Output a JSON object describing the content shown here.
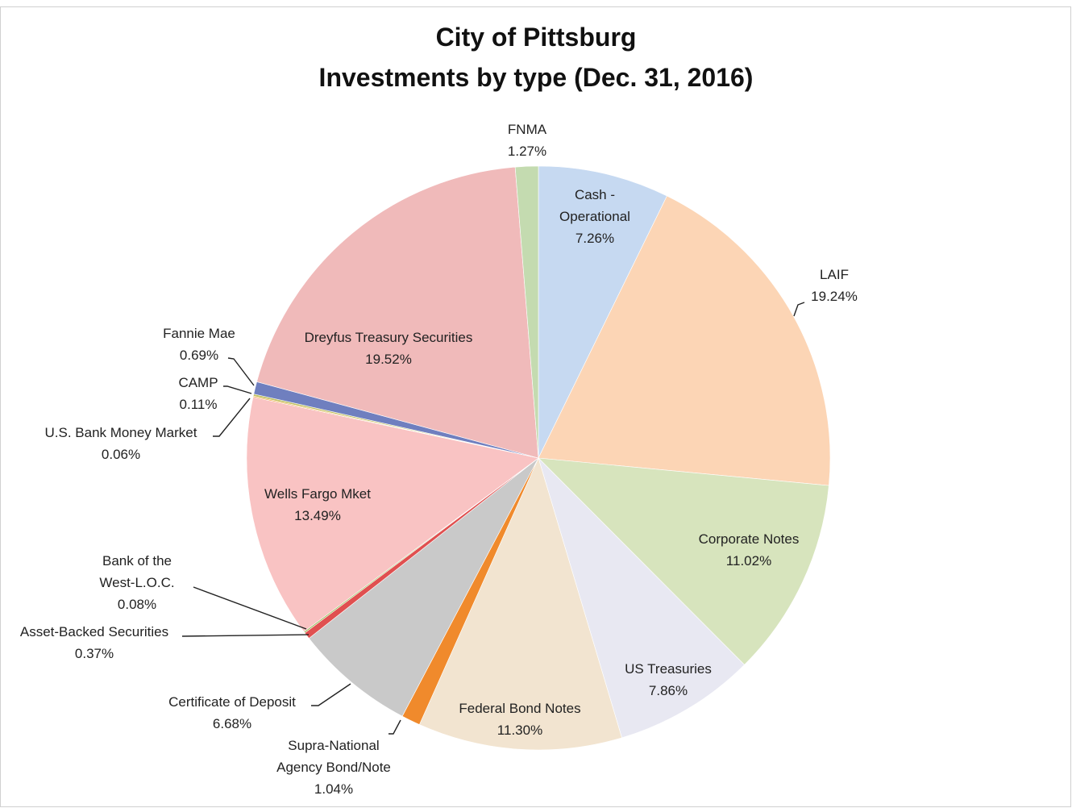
{
  "chart_data": {
    "type": "pie",
    "title": "City of Pittsburg",
    "subtitle": "Investments by type (Dec. 31, 2016)",
    "categories": [
      "Cash - Operational",
      "LAIF",
      "Corporate Notes",
      "US Treasuries",
      "Federal Bond Notes",
      "Supra-National Agency Bond/Note",
      "Certificate of Deposit",
      "Asset-Backed Securities",
      "Bank of the West-L.O.C.",
      "Wells Fargo Mket",
      "U.S. Bank Money Market",
      "CAMP",
      "Fannie Mae",
      "Dreyfus Treasury Securities",
      "FNMA"
    ],
    "values": [
      7.26,
      19.24,
      11.02,
      7.86,
      11.3,
      1.04,
      6.68,
      0.37,
      0.08,
      13.49,
      0.06,
      0.11,
      0.69,
      19.52,
      1.27
    ],
    "value_labels": [
      "7.26%",
      "19.24%",
      "11.02%",
      "7.86%",
      "11.30%",
      "1.04%",
      "6.68%",
      "0.37%",
      "0.08%",
      "13.49%",
      "0.06%",
      "0.11%",
      "0.69%",
      "19.52%",
      "1.27%"
    ],
    "colors": [
      "#c6d9f1",
      "#fcd5b5",
      "#d7e4bd",
      "#e8e8f2",
      "#f2e4d0",
      "#f08a2c",
      "#c9c9c9",
      "#e05050",
      "#9bbb59",
      "#f9c3c3",
      "#f0a030",
      "#c0c060",
      "#6f7fbf",
      "#f0baba",
      "#c4dbb0"
    ]
  }
}
